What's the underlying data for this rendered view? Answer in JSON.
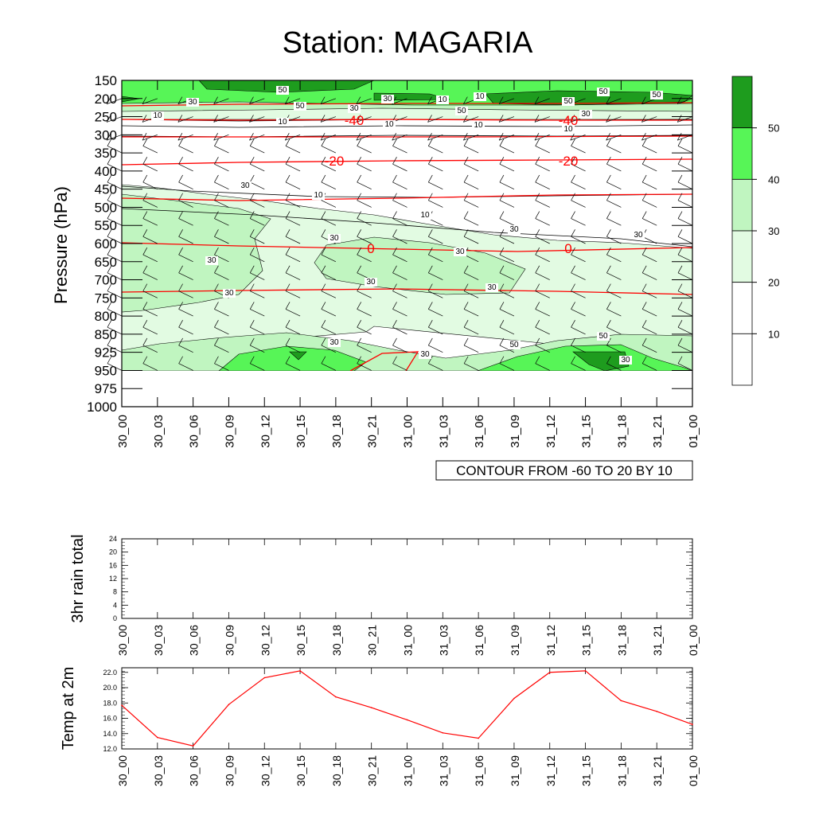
{
  "page": {
    "title": "Station: MAGARIA"
  },
  "colors": {
    "shade_lt": "#e2fbe2",
    "shade_md": "#c0f5c0",
    "shade_hi": "#57f557",
    "shade_top": "#1e9c1e",
    "temp_contour": "#ff0000",
    "temp_line": "#ff0000"
  },
  "chart_data": [
    {
      "type": "heatmap",
      "title": "Station: MAGARIA",
      "ylabel": "Pressure (hPa)",
      "xlabel": "",
      "x_ticks": [
        "30_00",
        "30_03",
        "30_06",
        "30_09",
        "30_12",
        "30_15",
        "30_18",
        "30_21",
        "31_00",
        "31_03",
        "31_06",
        "31_09",
        "31_12",
        "31_15",
        "31_18",
        "31_21",
        "01_00"
      ],
      "y_ticks": [
        150,
        200,
        250,
        300,
        350,
        400,
        450,
        500,
        550,
        600,
        650,
        700,
        750,
        800,
        850,
        925,
        950,
        975,
        1000
      ],
      "y_scale": "categorical, inverted (150 top, 1000 bottom)",
      "colorbar": {
        "levels": [
          10,
          20,
          30,
          40,
          50
        ],
        "labels": [
          "10",
          "20",
          "30",
          "40",
          "50"
        ]
      },
      "temp_contours": {
        "info": "CONTOUR FROM -60 TO 20 BY 10",
        "labels": [
          "-40",
          "-40",
          "-20",
          "-20",
          "0",
          "0"
        ]
      },
      "shade_labels": [
        "50",
        "30",
        "30",
        "10",
        "10",
        "50",
        "50",
        "50",
        "50",
        "30",
        "50",
        "30",
        "10",
        "10",
        "10",
        "10",
        "10",
        "30",
        "10",
        "10",
        "30",
        "30",
        "30",
        "30",
        "30",
        "30",
        "30",
        "30",
        "30",
        "50"
      ],
      "wind_barbs": "shown on every grid node"
    },
    {
      "type": "line",
      "ylabel": "3hr rain total",
      "x_ticks": [
        "30_00",
        "30_03",
        "30_06",
        "30_09",
        "30_12",
        "30_15",
        "30_18",
        "30_21",
        "31_00",
        "31_03",
        "31_06",
        "31_09",
        "31_12",
        "31_15",
        "31_18",
        "31_21",
        "01_00"
      ],
      "y_ticks": [
        "0",
        "4",
        "8",
        "12",
        "16",
        "20",
        "24"
      ],
      "ylim": [
        0,
        24
      ],
      "values": [
        0,
        0,
        0,
        0,
        0,
        0,
        0,
        0,
        0,
        0,
        0,
        0,
        0,
        0,
        0,
        0,
        0
      ]
    },
    {
      "type": "line",
      "ylabel": "Temp at 2m",
      "x_ticks": [
        "30_00",
        "30_03",
        "30_06",
        "30_09",
        "30_12",
        "30_15",
        "30_18",
        "30_21",
        "31_00",
        "31_03",
        "31_06",
        "31_09",
        "31_12",
        "31_15",
        "31_18",
        "31_21",
        "01_00"
      ],
      "y_ticks": [
        "12.0",
        "14.0",
        "16.0",
        "18.0",
        "20.0",
        "22.0"
      ],
      "ylim": [
        12,
        22.6
      ],
      "values": [
        17.7,
        13.5,
        12.4,
        17.8,
        21.3,
        22.2,
        18.8,
        17.4,
        15.8,
        14.1,
        13.4,
        18.6,
        22.0,
        22.2,
        18.3,
        16.9,
        15.2
      ]
    }
  ]
}
